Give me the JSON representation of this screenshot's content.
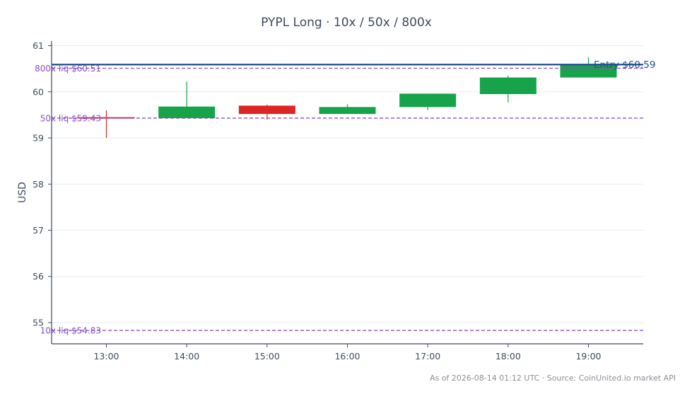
{
  "chart_data": {
    "type": "candlestick",
    "title": "PYPL Long · 10x / 50x / 800x",
    "ylabel": "USD",
    "xlabel": "",
    "ylim": [
      54.54,
      61.1
    ],
    "yticks": [
      55,
      56,
      57,
      58,
      59,
      60,
      61
    ],
    "grid": true,
    "categories": [
      "13:00",
      "14:00",
      "15:00",
      "16:00",
      "17:00",
      "18:00",
      "19:00"
    ],
    "candles": [
      {
        "time": "13:00",
        "open": 59.45,
        "high": 59.6,
        "low": 59.0,
        "close": 59.42
      },
      {
        "time": "14:00",
        "open": 59.43,
        "high": 60.22,
        "low": 59.43,
        "close": 59.68
      },
      {
        "time": "15:00",
        "open": 59.7,
        "high": 59.72,
        "low": 59.4,
        "close": 59.52
      },
      {
        "time": "16:00",
        "open": 59.52,
        "high": 59.73,
        "low": 59.52,
        "close": 59.67
      },
      {
        "time": "17:00",
        "open": 59.67,
        "high": 59.96,
        "low": 59.6,
        "close": 59.96
      },
      {
        "time": "18:00",
        "open": 59.95,
        "high": 60.35,
        "low": 59.77,
        "close": 60.31
      },
      {
        "time": "19:00",
        "open": 60.31,
        "high": 60.75,
        "low": 60.31,
        "close": 60.58
      }
    ],
    "reference_lines": [
      {
        "label": "Entry $60.59",
        "value": 60.59,
        "style": "solid",
        "color": "#1f4e8c"
      },
      {
        "label": "800x liq $60.51",
        "value": 60.51,
        "style": "dashed",
        "color": "#8a4fc8"
      },
      {
        "label": "50x liq $59.43",
        "value": 59.43,
        "style": "dashed",
        "color": "#8a4fc8"
      },
      {
        "label": "10x liq $54.83",
        "value": 54.83,
        "style": "dashed",
        "color": "#8a4fc8"
      }
    ],
    "colors": {
      "up": "#16a34a",
      "down": "#dc2626",
      "entry": "#1f4e8c",
      "liq": "#8a4fc8",
      "axis": "#3d4b5c",
      "grid": "#ececec"
    }
  },
  "footer": "As of 2026-08-14 01:12 UTC · Source: CoinUnited.io market API"
}
